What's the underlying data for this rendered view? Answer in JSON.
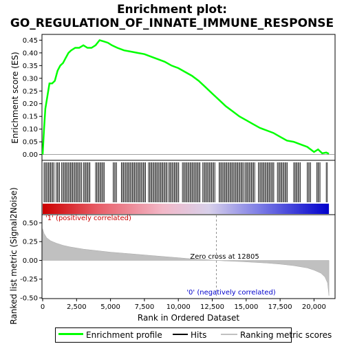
{
  "title_line1": "Enrichment plot:",
  "title_line2": "GO_REGULATION_OF_INNATE_IMMUNE_RESPONSE",
  "chart_data": {
    "type": "line",
    "title": "Enrichment plot: GO_REGULATION_OF_INNATE_IMMUNE_RESPONSE",
    "xlabel": "Rank in Ordered Dataset",
    "xlim": [
      0,
      21500
    ],
    "x_ticks": [
      0,
      2500,
      5000,
      7500,
      10000,
      12500,
      15000,
      17500,
      20000
    ],
    "x_tick_labels": [
      "0",
      "2,500",
      "5,000",
      "7,500",
      "10,000",
      "12,500",
      "15,000",
      "17,500",
      "20,000"
    ],
    "es_panel": {
      "ylabel": "Enrichment score (ES)",
      "ylim": [
        -0.02,
        0.47
      ],
      "y_ticks": [
        0.0,
        0.05,
        0.1,
        0.15,
        0.2,
        0.25,
        0.3,
        0.35,
        0.4,
        0.45
      ],
      "y_tick_labels": [
        "0.00",
        "0.05",
        "0.10",
        "0.15",
        "0.20",
        "0.25",
        "0.30",
        "0.35",
        "0.40",
        "0.45"
      ],
      "series_name": "Enrichment profile",
      "color": "#00ff00",
      "x": [
        0,
        100,
        200,
        350,
        500,
        700,
        900,
        1100,
        1300,
        1500,
        1700,
        1900,
        2100,
        2400,
        2700,
        3000,
        3300,
        3600,
        3900,
        4200,
        4500,
        4800,
        5100,
        5500,
        6000,
        6500,
        7000,
        7500,
        8000,
        8500,
        9000,
        9500,
        10000,
        10500,
        11000,
        11500,
        12000,
        12500,
        13000,
        13500,
        14000,
        14500,
        15000,
        15500,
        16000,
        16500,
        17000,
        17500,
        18000,
        18500,
        19000,
        19500,
        20000,
        20300,
        20600,
        20900,
        21100
      ],
      "y": [
        0.0,
        0.1,
        0.18,
        0.23,
        0.28,
        0.28,
        0.29,
        0.33,
        0.35,
        0.36,
        0.38,
        0.4,
        0.41,
        0.42,
        0.42,
        0.43,
        0.42,
        0.42,
        0.43,
        0.45,
        0.445,
        0.44,
        0.43,
        0.42,
        0.41,
        0.405,
        0.4,
        0.395,
        0.385,
        0.375,
        0.365,
        0.35,
        0.34,
        0.325,
        0.31,
        0.29,
        0.265,
        0.24,
        0.215,
        0.19,
        0.17,
        0.15,
        0.135,
        0.12,
        0.105,
        0.095,
        0.085,
        0.07,
        0.055,
        0.05,
        0.04,
        0.03,
        0.01,
        0.02,
        0.005,
        0.008,
        0.003
      ]
    },
    "hits_panel": {
      "series_name": "Hits",
      "hit_blocks": [
        [
          100,
          900
        ],
        [
          1000,
          1300
        ],
        [
          1400,
          2900
        ],
        [
          3000,
          3500
        ],
        [
          3900,
          4600
        ],
        [
          5200,
          5500
        ],
        [
          5800,
          7600
        ],
        [
          7800,
          9200
        ],
        [
          9300,
          10100
        ],
        [
          10300,
          11600
        ],
        [
          11800,
          12700
        ],
        [
          13000,
          14800
        ],
        [
          14900,
          15700
        ],
        [
          15900,
          17100
        ],
        [
          17300,
          18100
        ],
        [
          18500,
          19000
        ],
        [
          19500,
          19800
        ],
        [
          20200,
          20500
        ],
        [
          20900,
          21000
        ]
      ],
      "color_bar_labels": {
        "positive": "'1' (positively correlated)",
        "negative": "'0' (negatively correlated)"
      },
      "positive_color": "#cc0000",
      "negative_color": "#0000cc"
    },
    "metric_panel": {
      "ylabel": "Ranked list metric (Signal2Noise)",
      "ylim": [
        -0.5,
        0.6
      ],
      "y_ticks": [
        -0.5,
        -0.25,
        0.0,
        0.25,
        0.5
      ],
      "y_tick_labels": [
        "-0.50",
        "-0.25",
        "0.00",
        "0.25",
        "0.50"
      ],
      "series_name": "Ranking metric scores",
      "x": [
        0,
        100,
        300,
        600,
        1000,
        1500,
        2000,
        3000,
        4000,
        5000,
        6000,
        7000,
        8000,
        9000,
        10000,
        11000,
        12000,
        12805,
        13500,
        14500,
        15500,
        16500,
        17500,
        18500,
        19500,
        20000,
        20500,
        20800,
        21000,
        21100
      ],
      "y": [
        0.42,
        0.36,
        0.3,
        0.26,
        0.23,
        0.2,
        0.18,
        0.15,
        0.13,
        0.11,
        0.095,
        0.08,
        0.065,
        0.05,
        0.035,
        0.02,
        0.01,
        0.0,
        -0.008,
        -0.015,
        -0.025,
        -0.035,
        -0.05,
        -0.07,
        -0.1,
        -0.13,
        -0.17,
        -0.22,
        -0.3,
        -0.47
      ],
      "zero_cross_label": "Zero cross at 12805",
      "zero_cross_x": 12805
    },
    "legend": {
      "placement": "bottom",
      "entries": [
        "Enrichment profile",
        "Hits",
        "Ranking metric scores"
      ]
    }
  }
}
